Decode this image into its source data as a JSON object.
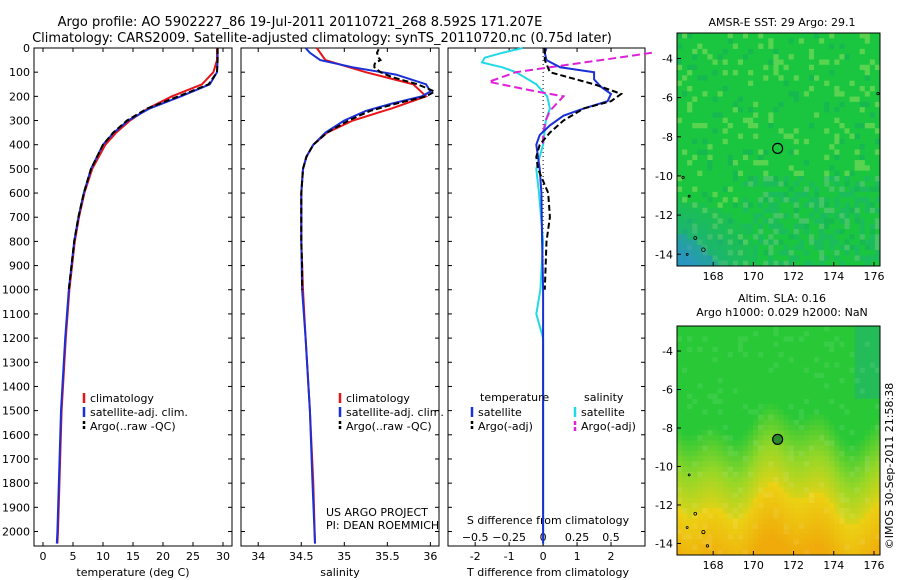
{
  "header": {
    "line1": "Argo profile: AO 5902227_86 19-Jul-2011 20110721_268 8.592S 171.207E",
    "line2": "Climatology: CARS2009. Satellite-adjusted climatology: synTS_20110720.nc (0.75d later)"
  },
  "sst_title": "AMSR-E SST: 29 Argo: 29.1",
  "sla_title1": "Altim. SLA: 0.16",
  "sla_title2": "Argo h1000: 0.029 h2000: NaN",
  "credit": "©IMOS 30-Sep-2011 21:58:38",
  "project1": "US ARGO PROJECT",
  "project2": "PI: DEAN ROEMMICH",
  "colors": {
    "clim": "#e8141a",
    "sat": "#1a2fd6",
    "argo": "#000000",
    "sat_s": "#22d8e6",
    "argo_s": "#e020d8"
  },
  "chart_data": [
    {
      "type": "line",
      "name": "temperature",
      "xlabel": "temperature (deg C)",
      "xticks": [
        0,
        5,
        10,
        15,
        20,
        25,
        30
      ],
      "yticks": [
        0,
        100,
        200,
        300,
        400,
        500,
        600,
        700,
        800,
        900,
        1000,
        1100,
        1200,
        1300,
        1400,
        1500,
        1600,
        1700,
        1800,
        1900,
        2000
      ],
      "xlim": [
        -1.5,
        31.5
      ],
      "ylim": [
        0,
        2060
      ],
      "legend": [
        "climatology",
        "satellite-adj. clim.",
        "Argo(..raw -QC)"
      ],
      "series": [
        {
          "name": "climatology",
          "color": "#e8141a",
          "depth": [
            0,
            50,
            100,
            150,
            200,
            250,
            300,
            350,
            400,
            500,
            600,
            700,
            800,
            1000,
            1200,
            1500,
            2000,
            2050
          ],
          "values": [
            29,
            29,
            28.4,
            26.5,
            21.5,
            17.5,
            14.5,
            12.2,
            10.4,
            8.2,
            6.9,
            6,
            5.3,
            4.4,
            3.8,
            3.1,
            2.5,
            2.4
          ]
        },
        {
          "name": "satellite-adj. clim.",
          "color": "#1a2fd6",
          "depth": [
            0,
            50,
            100,
            150,
            200,
            250,
            300,
            350,
            400,
            500,
            600,
            700,
            800,
            1000,
            1200,
            1500,
            2000,
            2050
          ],
          "values": [
            29.1,
            29.1,
            29,
            27.8,
            23,
            17.8,
            14.2,
            11.8,
            10,
            8,
            6.8,
            5.9,
            5.2,
            4.3,
            3.7,
            3,
            2.4,
            2.3
          ]
        },
        {
          "name": "Argo(..raw -QC)",
          "color": "#000000",
          "depth": [
            0,
            50,
            100,
            150,
            200,
            250,
            300,
            350,
            400,
            500,
            600,
            700,
            800,
            1000
          ],
          "values": [
            29.1,
            29.1,
            29,
            27.6,
            22.6,
            17.4,
            14,
            11.7,
            10,
            8,
            6.8,
            5.9,
            5.2,
            4.3
          ]
        }
      ]
    },
    {
      "type": "line",
      "name": "salinity",
      "xlabel": "salinity",
      "xticks": [
        34,
        34.5,
        35,
        35.5,
        36
      ],
      "xlim": [
        33.8,
        36.1
      ],
      "ylim": [
        0,
        2060
      ],
      "legend": [
        "climatology",
        "satellite-adj. clim.",
        "Argo(..raw -QC)"
      ],
      "series": [
        {
          "name": "climatology",
          "color": "#e8141a",
          "depth": [
            0,
            50,
            100,
            150,
            200,
            250,
            300,
            350,
            400,
            450,
            500,
            600,
            800,
            1000,
            1200,
            1500,
            1800,
            2050
          ],
          "values": [
            34.68,
            34.78,
            35.25,
            35.8,
            35.95,
            35.55,
            35.1,
            34.8,
            34.64,
            34.56,
            34.52,
            34.5,
            34.5,
            34.52,
            34.55,
            34.6,
            34.64,
            34.66
          ]
        },
        {
          "name": "satellite-adj. clim.",
          "color": "#1a2fd6",
          "depth": [
            0,
            20,
            50,
            80,
            110,
            150,
            180,
            200,
            230,
            260,
            300,
            350,
            400,
            450,
            500,
            600,
            800,
            1000,
            1200,
            1500,
            1800,
            2050
          ],
          "values": [
            34.55,
            34.6,
            34.72,
            35.1,
            35.6,
            35.95,
            36.0,
            35.9,
            35.55,
            35.25,
            35.0,
            34.78,
            34.64,
            34.56,
            34.52,
            34.5,
            34.5,
            34.51,
            34.55,
            34.6,
            34.63,
            34.66
          ]
        },
        {
          "name": "Argo(..raw -QC)",
          "color": "#000000",
          "depth": [
            5,
            20,
            40,
            50,
            60,
            70,
            80,
            100,
            120,
            150,
            180,
            200,
            230,
            260,
            300,
            350,
            400,
            450,
            500,
            600,
            700,
            800,
            900,
            1000
          ],
          "values": [
            35.4,
            35.38,
            35.4,
            35.42,
            35.36,
            35.35,
            35.35,
            35.42,
            35.55,
            35.85,
            36.05,
            35.95,
            35.6,
            35.3,
            35.05,
            34.8,
            34.64,
            34.56,
            34.52,
            34.5,
            34.5,
            34.5,
            34.51,
            34.51
          ]
        }
      ]
    },
    {
      "type": "line",
      "name": "difference",
      "xlabel": "T difference from climatology",
      "xlabel2": "S difference from climatology",
      "xticks": [
        -2,
        -1,
        0,
        1,
        2
      ],
      "xticks2": [
        -0.5,
        -0.25,
        0,
        0.25,
        0.5
      ],
      "xticks2_labels": [
        "−0.5",
        "−0.25",
        "0",
        "0.25",
        "0.5"
      ],
      "xlim": [
        -2.8,
        3
      ],
      "ylim": [
        0,
        2060
      ],
      "legend_t_title": "temperature",
      "legend_s_title": "salinity",
      "legend_t": [
        "satellite",
        "Argo(-adj)"
      ],
      "legend_s": [
        "satellite",
        "Argo(-adj)"
      ],
      "series": [
        {
          "name": "T satellite",
          "color": "#1a2fd6",
          "depth": [
            0,
            20,
            50,
            80,
            100,
            130,
            160,
            190,
            220,
            250,
            280,
            320,
            360,
            400,
            450,
            500,
            600,
            800,
            1000,
            1500,
            2050
          ],
          "values": [
            0.1,
            0.05,
            0.1,
            0.5,
            1.5,
            1.5,
            1.7,
            2.0,
            1.9,
            1.2,
            0.6,
            0.2,
            -0.1,
            -0.2,
            -0.15,
            -0.1,
            -0.05,
            -0.03,
            0,
            0,
            0
          ]
        },
        {
          "name": "T Argo(-adj)",
          "color": "#000000",
          "depth": [
            0,
            50,
            100,
            150,
            190,
            220,
            250,
            300,
            350,
            400,
            450,
            500,
            600,
            700,
            800,
            1000
          ],
          "values": [
            0.05,
            0.05,
            0.2,
            1.5,
            2.3,
            2.0,
            1.2,
            0.6,
            0.2,
            -0.1,
            -0.2,
            -0.15,
            0.15,
            0.2,
            0.1,
            0.05
          ]
        },
        {
          "name": "S satellite",
          "color": "#22d8e6",
          "depth": [
            0,
            20,
            40,
            60,
            80,
            100,
            150,
            200,
            250,
            300,
            400,
            500,
            600,
            800,
            1000,
            1100,
            1200,
            1500,
            2050
          ],
          "values": [
            -0.15,
            -0.3,
            -0.43,
            -0.45,
            -0.3,
            -0.2,
            -0.05,
            0.03,
            0.05,
            0.02,
            0,
            -0.05,
            -0.03,
            0,
            -0.02,
            -0.05,
            0,
            0,
            0
          ]
        },
        {
          "name": "S Argo(-adj)",
          "color": "#e020d8",
          "depth": [
            20,
            40,
            60,
            80,
            100,
            140,
            180,
            200,
            230,
            260,
            300,
            350,
            400
          ],
          "values": [
            0.8,
            0.55,
            0.3,
            0.05,
            -0.2,
            -0.4,
            -0.05,
            0.15,
            0.1,
            0.05,
            0.02,
            0,
            0
          ]
        }
      ]
    },
    {
      "type": "heatmap",
      "name": "sst_map",
      "xticks": [
        168,
        170,
        172,
        174,
        176
      ],
      "yticks": [
        -4,
        -6,
        -8,
        -10,
        -12,
        -14
      ],
      "xlim": [
        166.2,
        176.3
      ],
      "ylim": [
        -14.6,
        -2.7
      ],
      "marker": {
        "lon": 171.207,
        "lat": -8.592
      }
    },
    {
      "type": "heatmap",
      "name": "sla_map",
      "xticks": [
        168,
        170,
        172,
        174,
        176
      ],
      "yticks": [
        -4,
        -6,
        -8,
        -10,
        -12,
        -14
      ],
      "xlim": [
        166.2,
        176.3
      ],
      "ylim": [
        -14.6,
        -2.7
      ],
      "marker": {
        "lon": 171.207,
        "lat": -8.592
      }
    }
  ]
}
